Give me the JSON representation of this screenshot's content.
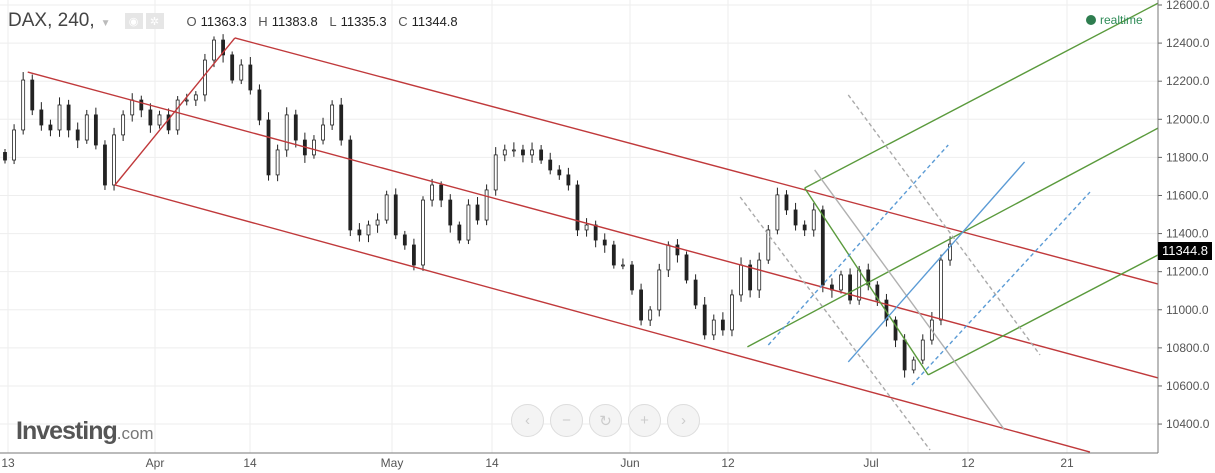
{
  "header": {
    "symbol": "DAX, 240,",
    "ohlc": [
      {
        "k": "O",
        "v": "11363.3"
      },
      {
        "k": "H",
        "v": "11383.8"
      },
      {
        "k": "L",
        "v": "11335.3"
      },
      {
        "k": "C",
        "v": "11344.8"
      }
    ]
  },
  "status": {
    "label": "realtime",
    "color": "#2e7d4f"
  },
  "logo": {
    "main": "Investing",
    "suffix": ".com"
  },
  "nav_buttons": [
    {
      "name": "scroll-left",
      "glyph": "‹"
    },
    {
      "name": "zoom-out",
      "glyph": "−"
    },
    {
      "name": "reset",
      "glyph": "↻"
    },
    {
      "name": "zoom-in",
      "glyph": "+"
    },
    {
      "name": "scroll-right",
      "glyph": "›"
    }
  ],
  "chart_data": {
    "type": "candlestick",
    "title": "",
    "ylim": [
      10240,
      12640
    ],
    "y_ticks": [
      "12600.0",
      "12400.0",
      "12200.0",
      "12000.0",
      "11800.0",
      "11600.0",
      "11400.0",
      "11200.0",
      "11000.0",
      "10800.0",
      "10600.0",
      "10400.0"
    ],
    "x_ticks": [
      "13",
      "Apr",
      "14",
      "May",
      "14",
      "Jun",
      "12",
      "Jul",
      "12",
      "21"
    ],
    "grid": true,
    "last_price": "11344.8",
    "closes": [
      11786,
      11944,
      12206,
      12049,
      11970,
      11944,
      12075,
      11944,
      11891,
      12023,
      11865,
      11655,
      11918,
      12023,
      12101,
      12049,
      11970,
      12023,
      11944,
      12101,
      12101,
      12128,
      12311,
      12416,
      12338,
      12206,
      12285,
      12154,
      11996,
      11708,
      11839,
      12023,
      11891,
      11813,
      11891,
      11970,
      12075,
      11891,
      11419,
      11393,
      11445,
      11471,
      11603,
      11393,
      11340,
      11235,
      11576,
      11655,
      11576,
      11445,
      11366,
      11550,
      11471,
      11629,
      11813,
      11839,
      11839,
      11813,
      11839,
      11786,
      11734,
      11708,
      11655,
      11419,
      11445,
      11366,
      11340,
      11235,
      11235,
      11104,
      10946,
      10999,
      11209,
      11340,
      11288,
      11156,
      11025,
      10868,
      10946,
      10894,
      11078,
      11235,
      11104,
      11261,
      11419,
      11603,
      11524,
      11445,
      11419,
      11524,
      11130,
      11104,
      11183,
      11051,
      11209,
      11130,
      11051,
      10946,
      10841,
      10684,
      10736,
      10841,
      10946,
      11261,
      11344.8
    ],
    "drawings": [
      {
        "name": "red-pitchfork-handle",
        "color": "#c0393b",
        "style": "solid",
        "from": [
          12.1,
          11655
        ],
        "to": [
          25.3,
          12427
        ]
      },
      {
        "name": "red-pitchfork-upper",
        "color": "#c0393b",
        "style": "solid",
        "from": [
          25.3,
          12427
        ],
        "to": [
          126.9,
          11135
        ]
      },
      {
        "name": "red-pitchfork-median",
        "color": "#c0393b",
        "style": "solid",
        "from": [
          2.5,
          12248
        ],
        "to": [
          126.9,
          10642
        ]
      },
      {
        "name": "red-pitchfork-lower",
        "color": "#c0393b",
        "style": "solid",
        "from": [
          12.1,
          11655
        ],
        "to": [
          119.4,
          10253
        ]
      },
      {
        "name": "green-pitchfork-handle",
        "color": "#5a9a3c",
        "style": "solid",
        "from": [
          88.0,
          11639
        ],
        "to": [
          101.6,
          10658
        ]
      },
      {
        "name": "green-pitchfork-upper",
        "color": "#5a9a3c",
        "style": "solid",
        "from": [
          88.0,
          11639
        ],
        "to": [
          126.9,
          12610
        ]
      },
      {
        "name": "green-pitchfork-median",
        "color": "#5a9a3c",
        "style": "solid",
        "from": [
          81.7,
          10805
        ],
        "to": [
          126.9,
          11954
        ]
      },
      {
        "name": "green-pitchfork-lower",
        "color": "#5a9a3c",
        "style": "solid",
        "from": [
          101.6,
          10658
        ],
        "to": [
          126.9,
          11288
        ]
      },
      {
        "name": "grey-line",
        "color": "#b0b0b0",
        "style": "solid",
        "from": [
          89.1,
          11734
        ],
        "to": [
          110.0,
          10369
        ]
      },
      {
        "name": "grey-dashed-line-1",
        "color": "#aaaaaa",
        "style": "dashed",
        "from": [
          80.9,
          11592
        ],
        "to": [
          101.8,
          10264
        ]
      },
      {
        "name": "grey-dashed-line-2",
        "color": "#aaaaaa",
        "style": "dashed",
        "from": [
          92.8,
          12128
        ],
        "to": [
          113.9,
          10763
        ]
      },
      {
        "name": "blue-line",
        "color": "#5b9bd5",
        "style": "solid",
        "from": [
          92.8,
          10726
        ],
        "to": [
          112.2,
          11776
        ]
      },
      {
        "name": "blue-dashed-line-1",
        "color": "#5b9bd5",
        "style": "dashed",
        "from": [
          84.0,
          10815
        ],
        "to": [
          103.8,
          11865
        ]
      },
      {
        "name": "blue-dashed-line-2",
        "color": "#5b9bd5",
        "style": "dashed",
        "from": [
          99.8,
          10605
        ],
        "to": [
          119.4,
          11618
        ]
      }
    ]
  }
}
